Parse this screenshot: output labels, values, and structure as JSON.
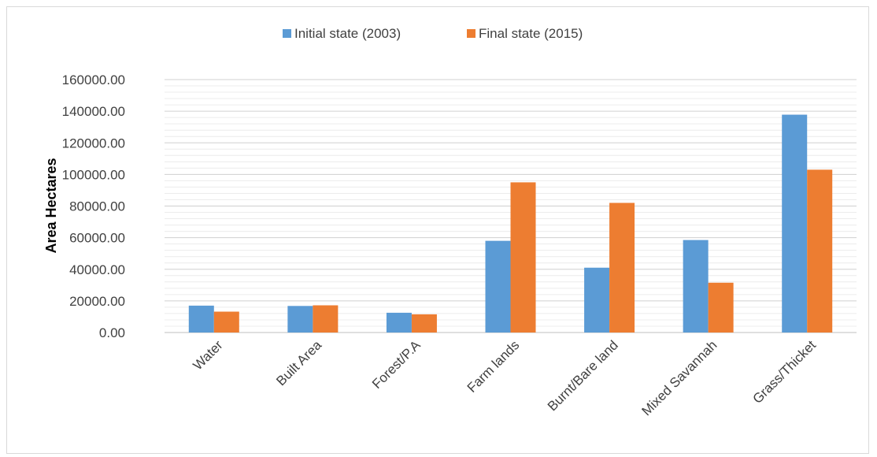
{
  "colors": {
    "series_1": "#5B9BD5",
    "series_2": "#ED7D31",
    "grid": "#d9d9d9",
    "axis_text": "#404040"
  },
  "chart_data": {
    "type": "bar",
    "title": "",
    "xlabel": "",
    "ylabel": "Area Hectares",
    "legend_position": "top",
    "grid": true,
    "ylim": [
      0,
      160000
    ],
    "yticks": [
      "0.00",
      "20000.00",
      "40000.00",
      "60000.00",
      "80000.00",
      "100000.00",
      "120000.00",
      "140000.00",
      "160000.00"
    ],
    "categories": [
      "Water",
      "Built Area",
      "Forest/P.A",
      "Farm lands",
      "Burnt/Bare land",
      "Mixed Savannah",
      "Grass/Thicket"
    ],
    "series": [
      {
        "name": "Initial state (2003)",
        "values": [
          17000,
          16800,
          12500,
          58000,
          41000,
          58500,
          137800
        ]
      },
      {
        "name": "Final state (2015)",
        "values": [
          13200,
          17200,
          11500,
          95000,
          82000,
          31500,
          103000
        ]
      }
    ]
  }
}
